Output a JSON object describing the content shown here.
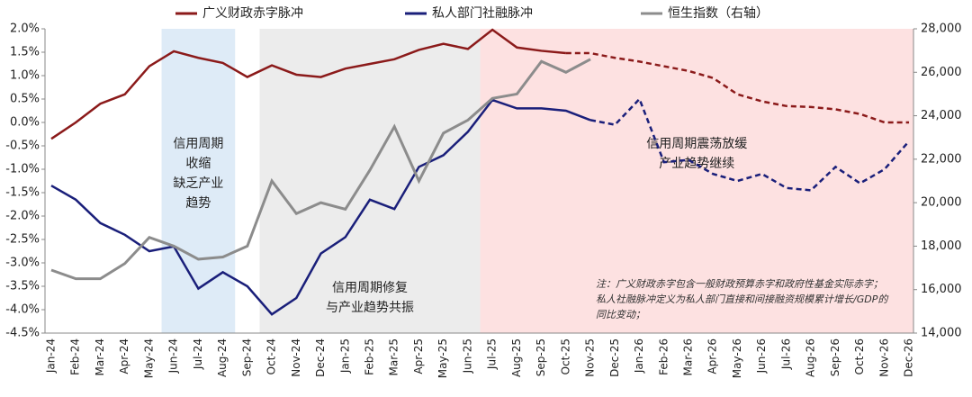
{
  "chart_data": {
    "type": "line",
    "categories": [
      "Jan-24",
      "Feb-24",
      "Mar-24",
      "Apr-24",
      "May-24",
      "Jun-24",
      "Jul-24",
      "Aug-24",
      "Sep-24",
      "Oct-24",
      "Nov-24",
      "Dec-24",
      "Jan-25",
      "Feb-25",
      "Mar-25",
      "Apr-25",
      "May-25",
      "Jun-25",
      "Jul-25",
      "Aug-25",
      "Sep-25",
      "Oct-25",
      "Nov-25",
      "Dec-25",
      "Jan-26",
      "Feb-26",
      "Mar-26",
      "Apr-26",
      "May-26",
      "Jun-26",
      "Jul-26",
      "Aug-26",
      "Sep-26",
      "Oct-26",
      "Nov-26",
      "Dec-26"
    ],
    "series": [
      {
        "name": "广义财政赤字脉冲",
        "color": "#8b1a1a",
        "forecast_from": 21,
        "values": [
          -0.35,
          0.0,
          0.4,
          0.6,
          1.2,
          1.52,
          1.38,
          1.27,
          0.97,
          1.22,
          1.02,
          0.97,
          1.15,
          1.25,
          1.35,
          1.55,
          1.68,
          1.57,
          1.98,
          1.6,
          1.53,
          1.48,
          1.48,
          1.38,
          1.3,
          1.2,
          1.1,
          0.95,
          0.6,
          0.45,
          0.35,
          0.33,
          0.28,
          0.18,
          0.0,
          0.0
        ]
      },
      {
        "name": "私人部门社融脉冲",
        "color": "#1a1f7a",
        "forecast_from": 22,
        "values": [
          -1.35,
          -1.65,
          -2.15,
          -2.4,
          -2.75,
          -2.65,
          -3.55,
          -3.2,
          -3.5,
          -4.1,
          -3.75,
          -2.8,
          -2.45,
          -1.65,
          -1.85,
          -0.95,
          -0.7,
          -0.2,
          0.48,
          0.3,
          0.3,
          0.25,
          0.05,
          -0.05,
          0.5,
          -0.85,
          -0.8,
          -1.1,
          -1.25,
          -1.1,
          -1.4,
          -1.45,
          -0.95,
          -1.3,
          -1.0,
          -0.4
        ]
      },
      {
        "name": "恒生指数（右轴）",
        "color": "#8c8c8c",
        "axis": "y2",
        "values": [
          16900,
          16500,
          16500,
          17200,
          18400,
          18000,
          17400,
          17500,
          18000,
          21000,
          19500,
          20000,
          19700,
          21500,
          23500,
          21000,
          23200,
          23800,
          24800,
          25000,
          26500,
          26000,
          26600,
          null,
          null,
          null,
          null,
          null,
          null,
          null,
          null,
          null,
          null,
          null,
          null,
          null
        ]
      }
    ],
    "ylim": [
      -4.5,
      2.0
    ],
    "yticks": [
      {
        "value": -4.5,
        "label": "-4.5%"
      },
      {
        "value": -4.0,
        "label": "-4.0%"
      },
      {
        "value": -3.5,
        "label": "-3.5%"
      },
      {
        "value": -3.0,
        "label": "-3.0%"
      },
      {
        "value": -2.5,
        "label": "-2.5%"
      },
      {
        "value": -2.0,
        "label": "-2.0%"
      },
      {
        "value": -1.5,
        "label": "-1.5%"
      },
      {
        "value": -1.0,
        "label": "-1.0%"
      },
      {
        "value": -0.5,
        "label": "-0.5%"
      },
      {
        "value": 0.0,
        "label": "0.0%"
      },
      {
        "value": 0.5,
        "label": "0.5%"
      },
      {
        "value": 1.0,
        "label": "1.0%"
      },
      {
        "value": 1.5,
        "label": "1.5%"
      },
      {
        "value": 2.0,
        "label": "2.0%"
      }
    ],
    "y2lim": [
      14000,
      28000
    ],
    "y2ticks": [
      {
        "value": 14000,
        "label": "14,000"
      },
      {
        "value": 16000,
        "label": "16,000"
      },
      {
        "value": 18000,
        "label": "18,000"
      },
      {
        "value": 20000,
        "label": "20,000"
      },
      {
        "value": 22000,
        "label": "22,000"
      },
      {
        "value": 24000,
        "label": "24,000"
      },
      {
        "value": 26000,
        "label": "26,000"
      },
      {
        "value": 28000,
        "label": "28,000"
      }
    ],
    "regions": [
      {
        "start": "Jun-24",
        "end": "Aug-24",
        "color": "#deebf7",
        "label": [
          "信用周期",
          "收缩",
          "缺乏产业",
          "趋势"
        ]
      },
      {
        "start": "Oct-24",
        "end": "Jun-25",
        "color": "#ececec",
        "label": [
          "信用周期修复",
          "与产业趋势共振"
        ]
      },
      {
        "start": "Jul-25",
        "end": "Dec-26",
        "color": "#fde1e1",
        "label": [
          "信用周期震荡放缓",
          "产业趋势继续"
        ]
      }
    ],
    "note": [
      "注：广义财政赤字包含一般财政预算赤字和政府性基金实际赤字；",
      "私人社融脉冲定义为私人部门直接和间接融资规模累计增长/GDP的",
      "同比变动；"
    ]
  }
}
